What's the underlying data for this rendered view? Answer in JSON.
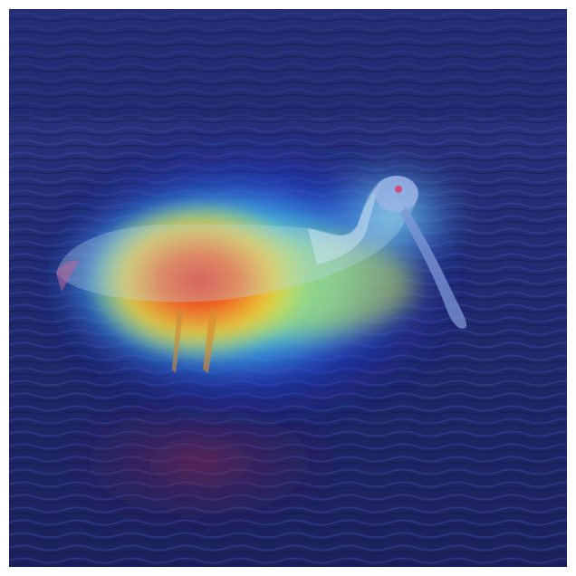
{
  "figure": {
    "subject_icon": "spoonbill-bird",
    "overlay_type": "attention-heatmap",
    "colormap": "jet",
    "colors": {
      "border": "#ffffff",
      "water_dark": "#1b1f5e",
      "water_mid": "#25307a",
      "heat_low": "#1a2fd6",
      "heat_cyan": "#5fe6e8",
      "heat_yellow": "#f4e23a",
      "heat_orange": "#f7941d",
      "heat_high": "#e5321c",
      "bird_body": "#b8d8ef",
      "bird_head": "#8aa6e0",
      "bird_eye": "#d94a7a"
    }
  }
}
